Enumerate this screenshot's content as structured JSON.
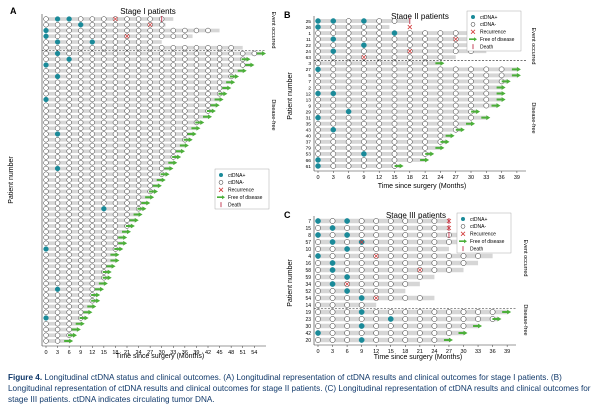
{
  "figure": {
    "caption_label": "Figure 4.",
    "caption_text": "Longitudinal ctDNA status and clinical outcomes. (A) Longitudinal representation of ctDNA results and clinical outcomes for stage I patients. (B) Longitudinal representation of ctDNA results and clinical outcomes for stage II patients. (C) Longitudinal representation of ctDNA results and clinical outcomes for stage III patients. ctDNA indicates circulating tumor DNA.",
    "legend_labels": [
      "ctDNA+",
      "ctDNA-",
      "Recurrence",
      "Free of disease",
      "Death"
    ]
  },
  "colors": {
    "positive": "#1a8a99",
    "negative_fill": "#ffffff",
    "recurrence": "#d23b3b",
    "free": "#4caf3a",
    "death": "#c0304a",
    "bar": "#d6d6d6",
    "caption": "#123a6b"
  },
  "chart_data": [
    {
      "type": "scatter",
      "panel": "A",
      "title": "Stage I patients",
      "xlabel": "Time since surgery (Months)",
      "ylabel": "Patient number",
      "xticks": [
        0,
        3,
        6,
        9,
        12,
        15,
        18,
        21,
        24,
        27,
        30,
        33,
        36,
        39,
        42,
        45,
        48,
        51,
        54
      ],
      "xlim": [
        0,
        56
      ],
      "n_patients": 57,
      "n_event": 6,
      "group_labels": [
        "Event occurred",
        "Disease-free"
      ],
      "row_ends": [
        33,
        31,
        45,
        38,
        30,
        51,
        56,
        52,
        53,
        51,
        49,
        48,
        47,
        46,
        45,
        44,
        43,
        42,
        40,
        39,
        38,
        37,
        36,
        35,
        34,
        33,
        32,
        31,
        30,
        29,
        28,
        27,
        26,
        25,
        24,
        23,
        22,
        21,
        20,
        20,
        19,
        18,
        18,
        17,
        16,
        16,
        15,
        14,
        13,
        13,
        12,
        11,
        10,
        9,
        8,
        7,
        6
      ],
      "positive_points": [
        [
          0,
          3
        ],
        [
          0,
          6
        ],
        [
          1,
          9
        ],
        [
          2,
          0
        ],
        [
          2,
          5
        ],
        [
          3,
          0
        ],
        [
          4,
          3
        ],
        [
          4,
          12
        ],
        [
          6,
          3
        ],
        [
          7,
          6
        ],
        [
          8,
          0
        ],
        [
          10,
          3
        ],
        [
          14,
          0
        ],
        [
          20,
          3
        ],
        [
          26,
          3
        ],
        [
          33,
          15
        ],
        [
          40,
          0
        ],
        [
          47,
          3
        ],
        [
          52,
          0
        ]
      ],
      "recurrence": [
        [
          0,
          18
        ],
        [
          1,
          27
        ],
        [
          3,
          21
        ]
      ],
      "death": [
        [
          0,
          30
        ]
      ],
      "legend_labels": [
        "ctDNA+",
        "ctDNA-",
        "Recurrence",
        "Free of disease",
        "Death"
      ]
    },
    {
      "type": "scatter",
      "panel": "B",
      "title": "Stage II patients",
      "xlabel": "Time since surgery (Months)",
      "ylabel": "Patient number",
      "xticks": [
        0,
        3,
        6,
        9,
        12,
        15,
        18,
        21,
        24,
        27,
        30,
        33,
        36,
        39
      ],
      "xlim": [
        0,
        40
      ],
      "patient_ids": [
        "25",
        "26",
        "1",
        "11",
        "22",
        "24",
        "63",
        "3",
        "27",
        "5",
        "7",
        "2",
        "12",
        "13",
        "9",
        "29",
        "31",
        "35",
        "43",
        "40",
        "37",
        "79",
        "53",
        "66",
        "61"
      ],
      "n_event": 7,
      "group_labels": [
        "Event occurred",
        "Disease-free"
      ],
      "row_ends": [
        18,
        14,
        33,
        36,
        36,
        33,
        27,
        24,
        39,
        39,
        37,
        36,
        36,
        36,
        35,
        31,
        33,
        30,
        28,
        26,
        25,
        24,
        22,
        21,
        16
      ],
      "positive_points": [
        [
          0,
          0
        ],
        [
          0,
          3
        ],
        [
          0,
          9
        ],
        [
          0,
          11
        ],
        [
          1,
          0
        ],
        [
          2,
          15
        ],
        [
          3,
          3
        ],
        [
          4,
          9
        ],
        [
          5,
          3
        ],
        [
          8,
          0
        ],
        [
          10,
          1
        ],
        [
          12,
          0
        ],
        [
          12,
          3
        ],
        [
          15,
          6
        ],
        [
          16,
          0
        ],
        [
          17,
          1
        ],
        [
          18,
          3
        ],
        [
          20,
          1
        ],
        [
          22,
          9
        ],
        [
          23,
          0
        ],
        [
          24,
          0
        ]
      ],
      "recurrence": [
        [
          1,
          18
        ],
        [
          3,
          27
        ],
        [
          5,
          18
        ],
        [
          6,
          9
        ]
      ],
      "death": [
        [
          0,
          18
        ]
      ],
      "legend_labels": [
        "ctDNA+",
        "ctDNA-",
        "Recurrence",
        "Free of disease",
        "Death"
      ]
    },
    {
      "type": "scatter",
      "panel": "C",
      "title": "Stage III patients",
      "xlabel": "Time since surgery (Months)",
      "ylabel": "Patient number",
      "xticks": [
        0,
        3,
        6,
        9,
        12,
        15,
        18,
        21,
        24,
        27,
        30,
        33,
        36,
        39
      ],
      "xlim": [
        0,
        40
      ],
      "patient_ids": [
        "7",
        "15",
        "8",
        "57",
        "10",
        "4",
        "16",
        "58",
        "59",
        "34",
        "52",
        "54",
        "14",
        "19",
        "23",
        "30",
        "42",
        "20"
      ],
      "n_event": 13,
      "group_labels": [
        "Event occurred",
        "Disease-free"
      ],
      "row_ends": [
        27,
        27,
        30,
        36,
        27,
        36,
        33,
        30,
        24,
        21,
        18,
        24,
        12,
        39,
        37,
        33,
        30,
        27
      ],
      "positive_points": [
        [
          0,
          0
        ],
        [
          0,
          6
        ],
        [
          1,
          3
        ],
        [
          2,
          0
        ],
        [
          2,
          6
        ],
        [
          3,
          3
        ],
        [
          3,
          9
        ],
        [
          4,
          6
        ],
        [
          5,
          0
        ],
        [
          6,
          3
        ],
        [
          7,
          3
        ],
        [
          8,
          6
        ],
        [
          9,
          3
        ],
        [
          10,
          6
        ],
        [
          11,
          9
        ],
        [
          13,
          9
        ],
        [
          14,
          15
        ],
        [
          15,
          9
        ],
        [
          16,
          0
        ],
        [
          17,
          9
        ]
      ],
      "recurrence": [
        [
          0,
          27
        ],
        [
          1,
          27
        ],
        [
          3,
          9
        ],
        [
          5,
          12
        ],
        [
          7,
          21
        ],
        [
          9,
          6
        ],
        [
          11,
          12
        ]
      ],
      "death": [
        [
          0,
          27
        ],
        [
          1,
          27
        ],
        [
          2,
          27
        ]
      ],
      "legend_labels": [
        "ctDNA+",
        "ctDNA-",
        "Recurrence",
        "Free of disease",
        "Death"
      ]
    }
  ]
}
